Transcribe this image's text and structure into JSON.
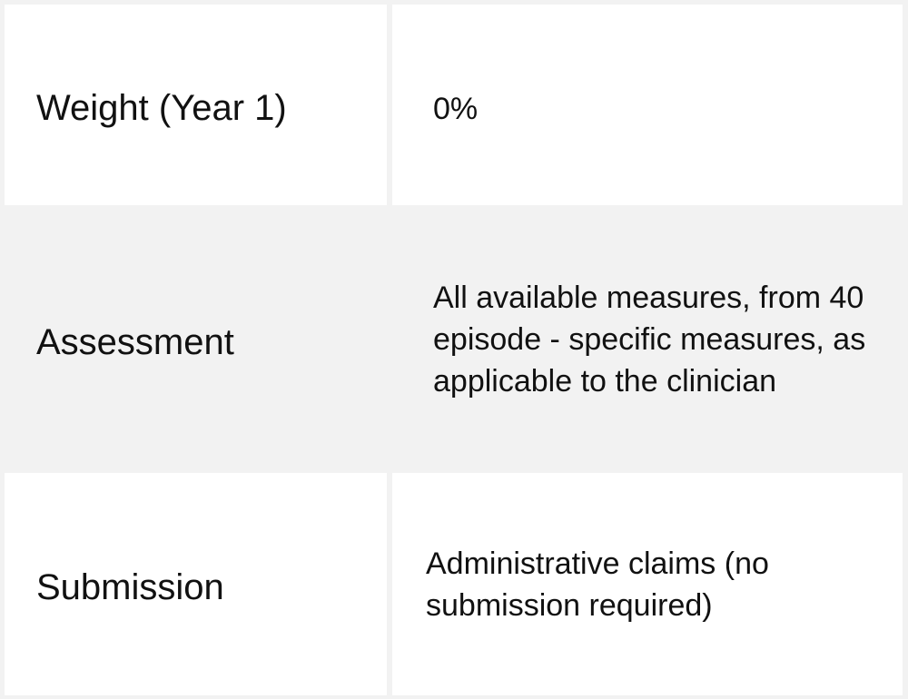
{
  "rows": [
    {
      "label": "Weight (Year 1)",
      "value": "0%"
    },
    {
      "label": "Assessment",
      "value": "All available measures, from 40 episode - specific measures, as applicable to the clinician"
    },
    {
      "label": "Submission",
      "value": "Administrative claims (no submission required)"
    }
  ],
  "colors": {
    "cell_white": "#ffffff",
    "cell_grey": "#f2f2f2",
    "border": "#f2f2f2",
    "text": "#111111"
  }
}
